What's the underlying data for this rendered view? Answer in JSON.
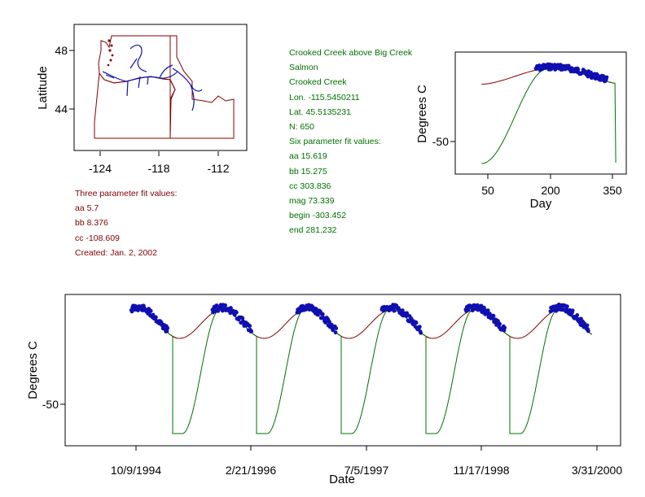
{
  "colors": {
    "red": "#800000",
    "green": "#007000",
    "blue": "#1010b0",
    "frame": "#000000"
  },
  "site": {
    "name": "Crooked Creek above Big Creek",
    "basin": "Salmon",
    "stream": "Crooked Creek",
    "lon": "Lon. -115.5450211",
    "lat": "Lat. 45.5135231",
    "n": "N: 650"
  },
  "three_param": {
    "heading": "Three parameter fit values:",
    "aa": "aa 5.7",
    "bb": "bb 8.376",
    "cc": "cc -108.609",
    "created": "Created:   Jan. 2, 2002"
  },
  "six_param": {
    "heading": "Six parameter fit values:",
    "aa": "aa 15.619",
    "bb": "bb 15.275",
    "cc": "cc 303.836",
    "mag": "mag 73.339",
    "begin": "begin -303.452",
    "end": "end 281.232"
  },
  "chart_data": [
    {
      "type": "map",
      "ylabel": "Latitude",
      "xticks": [
        "-124",
        "-118",
        "-112"
      ],
      "yticks": [
        "48",
        "44"
      ],
      "xlim": [
        -127,
        -110
      ],
      "ylim": [
        41.5,
        49.5
      ]
    },
    {
      "type": "line",
      "xlabel": "Day",
      "ylabel": "Degrees C",
      "xticks": [
        "50",
        "200",
        "350"
      ],
      "yticks": [
        "-50"
      ],
      "xlim": [
        -20,
        375
      ],
      "ylim": [
        -70,
        40
      ],
      "series": [
        {
          "kind": "three-param-fit",
          "color": "#800000",
          "aa": 5.7,
          "bb": 8.376,
          "cc": -108.609
        },
        {
          "kind": "six-param-fit",
          "color": "#007000",
          "aa": 15.619,
          "bb": 15.275,
          "cc": 303.836,
          "mag": 73.339,
          "begin": -303.452,
          "end": 281.232
        },
        {
          "kind": "observations",
          "color": "#1010b0",
          "day_range": [
            165,
            335
          ]
        }
      ]
    },
    {
      "type": "line",
      "xlabel": "Date",
      "ylabel": "Degrees C",
      "xticks": [
        "10/9/1994",
        "2/21/1996",
        "7/5/1997",
        "11/17/1998",
        "3/31/2000"
      ],
      "yticks": [
        "-50"
      ],
      "ylim": [
        -70,
        40
      ],
      "series": [
        {
          "kind": "three-param-fit",
          "color": "#800000"
        },
        {
          "kind": "six-param-fit",
          "color": "#007000"
        },
        {
          "kind": "observations",
          "color": "#1010b0"
        }
      ]
    }
  ]
}
